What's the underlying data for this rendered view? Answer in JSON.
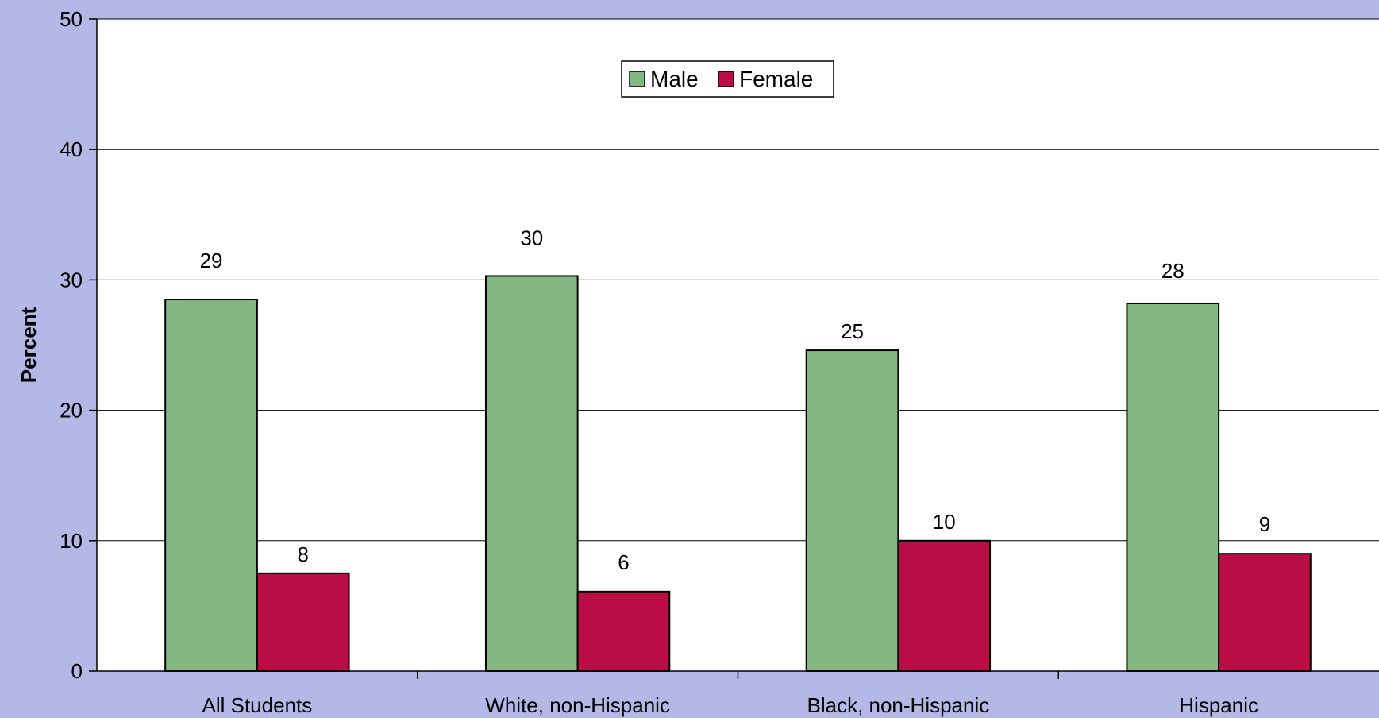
{
  "colors": {
    "background": "#b3b8e6",
    "plot_area": "#ffffff",
    "male": "#83b883",
    "female": "#ba0d46"
  },
  "chart_data": {
    "type": "bar",
    "title": "",
    "xlabel": "",
    "ylabel": "Percent",
    "ylim": [
      0,
      50
    ],
    "yticks": [
      0,
      10,
      20,
      30,
      40,
      50
    ],
    "grid": true,
    "legend_position": "top-center",
    "categories": [
      "All Students",
      "White, non-Hispanic",
      "Black, non-Hispanic",
      "Hispanic"
    ],
    "series": [
      {
        "name": "Male",
        "values": [
          28.5,
          30.3,
          24.6,
          28.2
        ],
        "labels": [
          "29",
          "30",
          "25",
          "28"
        ]
      },
      {
        "name": "Female",
        "values": [
          7.5,
          6.1,
          10.0,
          9.0
        ],
        "labels": [
          "8",
          "6",
          "10",
          "9"
        ]
      }
    ]
  }
}
